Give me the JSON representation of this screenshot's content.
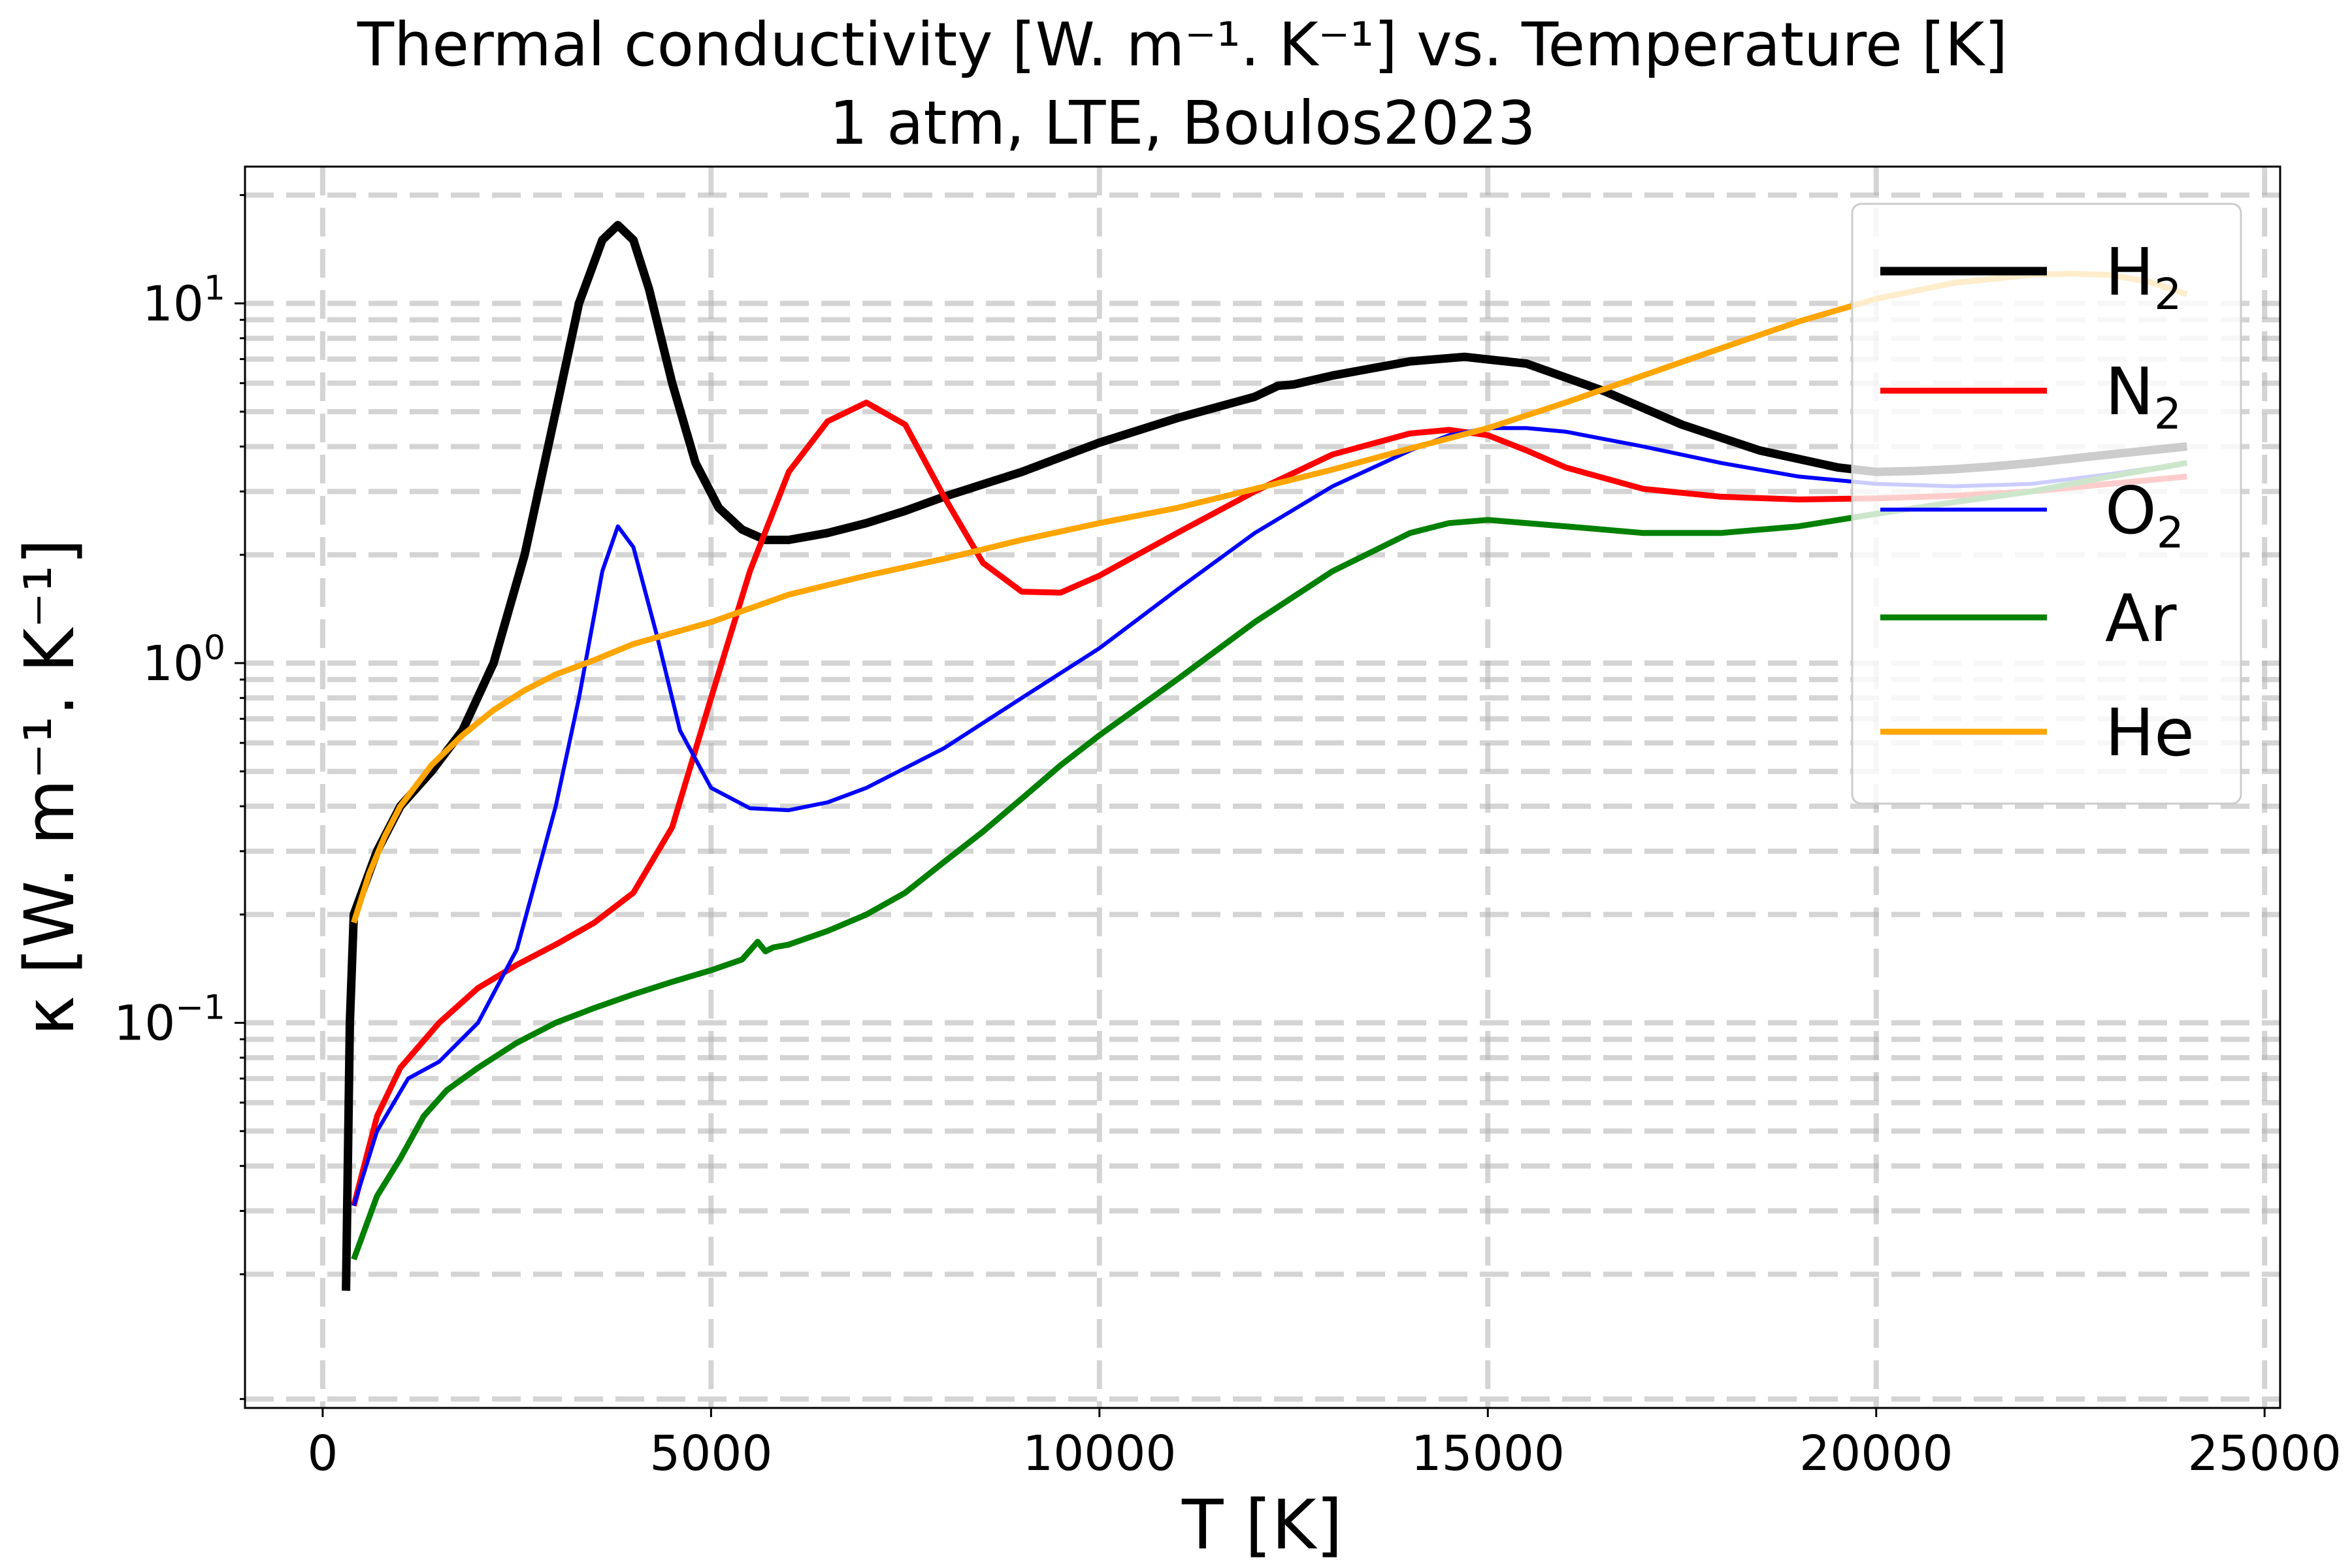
{
  "title_line1": "Thermal conductivity [W. m⁻¹. K⁻¹] vs. Temperature [K]",
  "title_line2": "1 atm, LTE, Boulos2023",
  "chart_data": {
    "type": "line",
    "xlabel": "T [K]",
    "ylabel": "κ [W. m⁻¹. K⁻¹]",
    "xlim": [
      -1000,
      25200
    ],
    "ylim": [
      0.0085,
      24
    ],
    "yscale": "log",
    "grid": true,
    "legend_position": "upper right",
    "xticks": [
      {
        "value": 0,
        "label": "0"
      },
      {
        "value": 5000,
        "label": "5000"
      },
      {
        "value": 10000,
        "label": "10000"
      },
      {
        "value": 15000,
        "label": "15000"
      },
      {
        "value": 20000,
        "label": "20000"
      },
      {
        "value": 25000,
        "label": "25000"
      }
    ],
    "yticks": [
      {
        "value": 0.1,
        "base": "10",
        "exp": "−1"
      },
      {
        "value": 1,
        "base": "10",
        "exp": "0"
      },
      {
        "value": 10,
        "base": "10",
        "exp": "1"
      }
    ],
    "series": [
      {
        "name": "H",
        "sub": "2",
        "color": "#000000",
        "width": 13,
        "x": [
          300,
          350,
          400,
          700,
          1000,
          1400,
          1800,
          2200,
          2600,
          3000,
          3300,
          3600,
          3800,
          4000,
          4200,
          4500,
          4800,
          5100,
          5400,
          5700,
          6000,
          6500,
          7000,
          7500,
          8000,
          9000,
          10000,
          11000,
          12000,
          12300,
          12500,
          13000,
          14000,
          14700,
          15500,
          16500,
          17500,
          18500,
          19500,
          20000,
          20500,
          21000,
          21500,
          22000,
          23000,
          24000
        ],
        "values": [
          0.018,
          0.1,
          0.2,
          0.3,
          0.4,
          0.5,
          0.65,
          1.0,
          2.0,
          5.0,
          10.0,
          15.0,
          16.5,
          15.0,
          11.0,
          6.0,
          3.6,
          2.7,
          2.35,
          2.2,
          2.2,
          2.3,
          2.45,
          2.65,
          2.9,
          3.4,
          4.1,
          4.8,
          5.5,
          5.9,
          5.95,
          6.3,
          6.9,
          7.1,
          6.8,
          5.7,
          4.6,
          3.9,
          3.5,
          3.4,
          3.42,
          3.46,
          3.52,
          3.6,
          3.8,
          4.0
        ]
      },
      {
        "name": "N",
        "sub": "2",
        "color": "#ff0000",
        "width": 9,
        "x": [
          400,
          700,
          1000,
          1500,
          2000,
          2500,
          3000,
          3500,
          4000,
          4500,
          5000,
          5500,
          6000,
          6500,
          7000,
          7500,
          8000,
          8500,
          9000,
          9500,
          10000,
          11000,
          12000,
          13000,
          14000,
          14500,
          15000,
          15500,
          16000,
          17000,
          18000,
          19000,
          20000,
          21000,
          22000,
          23000,
          24000
        ],
        "values": [
          0.031,
          0.055,
          0.075,
          0.1,
          0.125,
          0.145,
          0.165,
          0.19,
          0.23,
          0.35,
          0.8,
          1.8,
          3.4,
          4.7,
          5.3,
          4.6,
          2.9,
          1.9,
          1.58,
          1.57,
          1.75,
          2.3,
          3.0,
          3.8,
          4.35,
          4.45,
          4.3,
          3.9,
          3.5,
          3.05,
          2.9,
          2.85,
          2.87,
          2.92,
          3.0,
          3.15,
          3.3
        ]
      },
      {
        "name": "O",
        "sub": "2",
        "color": "#0000ff",
        "width": 6,
        "x": [
          400,
          700,
          1100,
          1500,
          2000,
          2500,
          3000,
          3300,
          3600,
          3800,
          4000,
          4300,
          4600,
          5000,
          5500,
          6000,
          6500,
          7000,
          8000,
          9000,
          10000,
          11000,
          12000,
          13000,
          14000,
          14500,
          15000,
          15500,
          16000,
          17000,
          18000,
          19000,
          20000,
          21000,
          22000,
          23000,
          24000
        ],
        "values": [
          0.031,
          0.05,
          0.07,
          0.078,
          0.1,
          0.16,
          0.4,
          0.8,
          1.8,
          2.4,
          2.1,
          1.2,
          0.65,
          0.45,
          0.395,
          0.39,
          0.41,
          0.45,
          0.58,
          0.8,
          1.1,
          1.6,
          2.3,
          3.1,
          3.9,
          4.3,
          4.5,
          4.5,
          4.4,
          4.0,
          3.6,
          3.3,
          3.15,
          3.1,
          3.15,
          3.35,
          3.6
        ]
      },
      {
        "name": "Ar",
        "sub": "",
        "color": "#008000",
        "width": 9,
        "x": [
          400,
          700,
          1000,
          1300,
          1600,
          2000,
          2500,
          3000,
          3500,
          4000,
          4500,
          5000,
          5400,
          5600,
          5700,
          5800,
          6000,
          6500,
          7000,
          7500,
          8000,
          8500,
          9000,
          9500,
          10000,
          11000,
          12000,
          13000,
          14000,
          14500,
          15000,
          16000,
          17000,
          18000,
          19000,
          20000,
          21000,
          22000,
          23000,
          24000
        ],
        "values": [
          0.022,
          0.033,
          0.042,
          0.055,
          0.065,
          0.075,
          0.088,
          0.1,
          0.11,
          0.12,
          0.13,
          0.14,
          0.15,
          0.168,
          0.158,
          0.162,
          0.165,
          0.18,
          0.2,
          0.23,
          0.28,
          0.34,
          0.42,
          0.52,
          0.63,
          0.9,
          1.3,
          1.8,
          2.3,
          2.45,
          2.5,
          2.4,
          2.3,
          2.3,
          2.4,
          2.6,
          2.8,
          3.0,
          3.3,
          3.6
        ]
      },
      {
        "name": "He",
        "sub": "",
        "color": "#ffa500",
        "width": 9,
        "x": [
          400,
          600,
          800,
          1000,
          1400,
          1800,
          2200,
          2600,
          3000,
          3500,
          4000,
          5000,
          6000,
          7000,
          8000,
          9000,
          10000,
          11000,
          12000,
          13000,
          14000,
          15000,
          16000,
          17000,
          18000,
          19000,
          20000,
          21000,
          22000,
          22500,
          23000,
          23500,
          24000
        ],
        "values": [
          0.19,
          0.26,
          0.33,
          0.4,
          0.52,
          0.63,
          0.74,
          0.84,
          0.93,
          1.02,
          1.13,
          1.3,
          1.55,
          1.75,
          1.95,
          2.2,
          2.45,
          2.7,
          3.05,
          3.45,
          3.95,
          4.5,
          5.3,
          6.3,
          7.5,
          8.9,
          10.3,
          11.4,
          12.0,
          12.1,
          12.0,
          11.5,
          10.6
        ]
      }
    ]
  }
}
